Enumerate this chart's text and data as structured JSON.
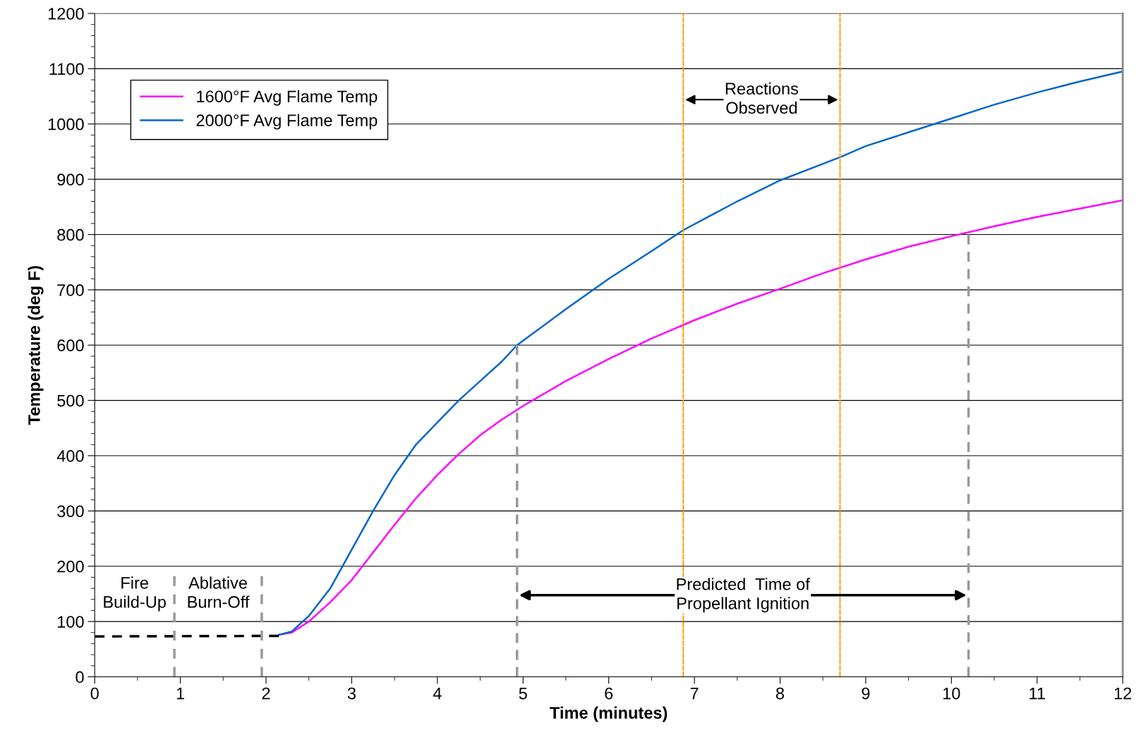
{
  "chart_data": {
    "type": "line",
    "xlabel": "Time (minutes)",
    "ylabel": "Temperature (deg F)",
    "xlim": [
      0,
      12
    ],
    "xticks": [
      0,
      1,
      2,
      3,
      4,
      5,
      6,
      7,
      8,
      9,
      10,
      11,
      12
    ],
    "ylim": [
      0,
      1200
    ],
    "yticks": [
      0,
      100,
      200,
      300,
      400,
      500,
      600,
      700,
      800,
      900,
      1000,
      1100,
      1200
    ],
    "grid": "y",
    "legend": "top left",
    "marker": "none",
    "series": [
      {
        "name": "1600°F Avg Flame Temp",
        "color": "#ff00ff",
        "x": [
          2.15,
          2.3,
          2.5,
          2.75,
          3.0,
          3.25,
          3.5,
          3.75,
          4.0,
          4.25,
          4.5,
          4.75,
          5.0,
          5.5,
          6.0,
          6.5,
          7.0,
          7.5,
          8.0,
          8.5,
          9.0,
          9.5,
          10.0,
          10.5,
          11.0,
          11.5,
          12.0
        ],
        "values": [
          76,
          80,
          100,
          135,
          175,
          225,
          275,
          323,
          365,
          403,
          437,
          465,
          490,
          535,
          575,
          612,
          645,
          675,
          702,
          730,
          755,
          778,
          797,
          815,
          832,
          847,
          862
        ]
      },
      {
        "name": "2000°F Avg Flame Temp",
        "color": "#0066cc",
        "x": [
          2.15,
          2.3,
          2.5,
          2.75,
          3.0,
          3.25,
          3.5,
          3.75,
          4.0,
          4.25,
          4.5,
          4.75,
          4.93,
          5.5,
          6.0,
          6.5,
          6.87,
          7.5,
          8.0,
          8.7,
          9.0,
          9.5,
          10.0,
          10.5,
          11.0,
          11.5,
          12.0
        ],
        "values": [
          76,
          82,
          110,
          160,
          230,
          300,
          365,
          420,
          460,
          500,
          535,
          570,
          600,
          665,
          720,
          770,
          808,
          860,
          898,
          940,
          960,
          985,
          1010,
          1035,
          1057,
          1077,
          1095
        ]
      },
      {
        "color": "#000000",
        "line_style": "dashed",
        "x": [
          0,
          2.15
        ],
        "values": [
          73,
          74
        ]
      },
      {
        "color": "#999999",
        "line_style": "dashed",
        "x": [
          0.93,
          0.93
        ],
        "values": [
          0,
          182
        ]
      },
      {
        "color": "#999999",
        "line_style": "dashed",
        "x": [
          1.95,
          1.95
        ],
        "values": [
          0,
          182
        ]
      },
      {
        "color": "#999999",
        "line_style": "dashed",
        "x": [
          4.93,
          4.93
        ],
        "values": [
          0,
          600
        ]
      },
      {
        "color": "#999999",
        "line_style": "dashed",
        "x": [
          10.2,
          10.2
        ],
        "values": [
          0,
          800
        ]
      }
    ],
    "ref_lines": [
      {
        "axis": "x",
        "value": 6.87,
        "color": "#ff9900",
        "line_style": "dashed"
      },
      {
        "axis": "x",
        "value": 8.7,
        "color": "#ff9900",
        "line_style": "dashed"
      }
    ],
    "annotations": [
      "Fire\nBuild-Up",
      "Ablative\nBurn-Off",
      "Reactions\nObserved",
      "Predicted  Time of\nPropellant Ignition"
    ]
  }
}
